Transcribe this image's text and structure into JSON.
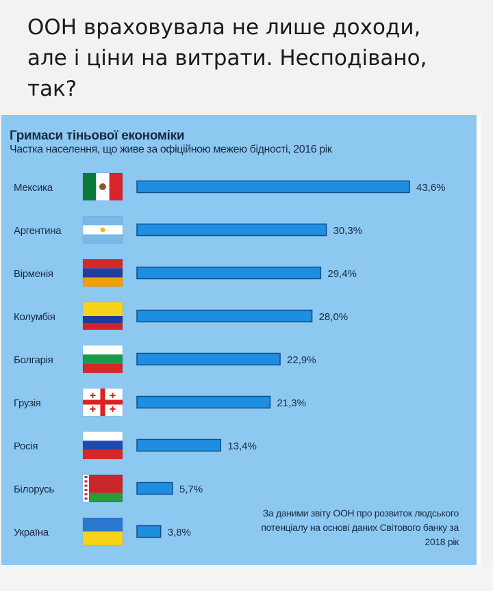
{
  "post": {
    "text": "ООН враховувала не лише доходи, але і ціни на витрати. Несподівано, так?"
  },
  "infographic": {
    "source_note": "За даними звіту ООН про розвиток людського потенціалу на основі даних Світового банку за 2018 рік"
  },
  "chart_data": {
    "type": "bar",
    "orientation": "horizontal",
    "title": "Гримаси тіньової економіки",
    "subtitle": "Частка населення, що живе за офіційною межею бідності, 2016 рік",
    "categories": [
      "Мексика",
      "Аргентина",
      "Вірменія",
      "Колумбія",
      "Болгарія",
      "Грузія",
      "Росія",
      "Білорусь",
      "Україна"
    ],
    "values": [
      43.6,
      30.3,
      29.4,
      28.0,
      22.9,
      21.3,
      13.4,
      5.7,
      3.8
    ],
    "value_labels": [
      "43,6%",
      "30,3%",
      "29,4%",
      "28,0%",
      "22,9%",
      "21,3%",
      "13,4%",
      "5,7%",
      "3,8%"
    ],
    "unit": "%",
    "xlim": [
      0,
      43.6
    ],
    "grid": false,
    "legend": "none",
    "flags": [
      "mexico-flag-icon",
      "argentina-flag-icon",
      "armenia-flag-icon",
      "colombia-flag-icon",
      "bulgaria-flag-icon",
      "georgia-flag-icon",
      "russia-flag-icon",
      "belarus-flag-icon",
      "ukraine-flag-icon"
    ],
    "colors": {
      "background": "#8cc8f0",
      "bar": "#1e8ee0",
      "bar_edge": "#0f4f8c",
      "text": "#1a2a44"
    }
  }
}
